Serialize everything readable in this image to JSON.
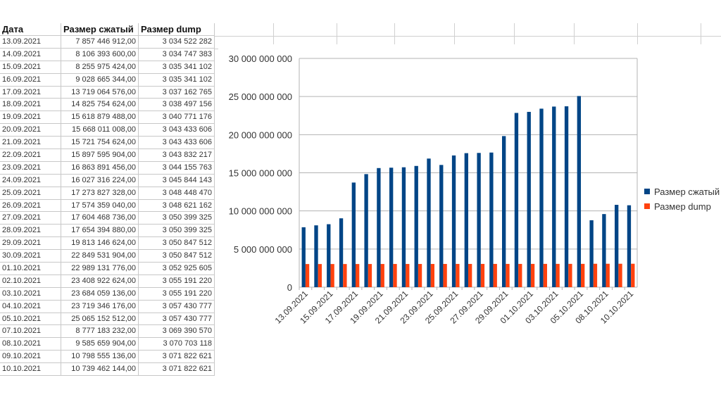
{
  "table": {
    "headers": [
      "Дата",
      "Размер сжатый",
      "Размер dump"
    ],
    "rows": [
      [
        "13.09.2021",
        "7 857 446 912,00",
        "3 034 522 282"
      ],
      [
        "14.09.2021",
        "8 106 393 600,00",
        "3 034 747 383"
      ],
      [
        "15.09.2021",
        "8 255 975 424,00",
        "3 035 341 102"
      ],
      [
        "16.09.2021",
        "9 028 665 344,00",
        "3 035 341 102"
      ],
      [
        "17.09.2021",
        "13 719 064 576,00",
        "3 037 162 765"
      ],
      [
        "18.09.2021",
        "14 825 754 624,00",
        "3 038 497 156"
      ],
      [
        "19.09.2021",
        "15 618 879 488,00",
        "3 040 771 176"
      ],
      [
        "20.09.2021",
        "15 668 011 008,00",
        "3 043 433 606"
      ],
      [
        "21.09.2021",
        "15 721 754 624,00",
        "3 043 433 606"
      ],
      [
        "22.09.2021",
        "15 897 595 904,00",
        "3 043 832 217"
      ],
      [
        "23.09.2021",
        "16 863 891 456,00",
        "3 044 155 763"
      ],
      [
        "24.09.2021",
        "16 027 316 224,00",
        "3 045 844 143"
      ],
      [
        "25.09.2021",
        "17 273 827 328,00",
        "3 048 448 470"
      ],
      [
        "26.09.2021",
        "17 574 359 040,00",
        "3 048 621 162"
      ],
      [
        "27.09.2021",
        "17 604 468 736,00",
        "3 050 399 325"
      ],
      [
        "28.09.2021",
        "17 654 394 880,00",
        "3 050 399 325"
      ],
      [
        "29.09.2021",
        "19 813 146 624,00",
        "3 050 847 512"
      ],
      [
        "30.09.2021",
        "22 849 531 904,00",
        "3 050 847 512"
      ],
      [
        "01.10.2021",
        "22 989 131 776,00",
        "3 052 925 605"
      ],
      [
        "02.10.2021",
        "23 408 922 624,00",
        "3 055 191 220"
      ],
      [
        "03.10.2021",
        "23 684 059 136,00",
        "3 055 191 220"
      ],
      [
        "04.10.2021",
        "23 719 346 176,00",
        "3 057 430 777"
      ],
      [
        "05.10.2021",
        "25 065 152 512,00",
        "3 057 430 777"
      ],
      [
        "07.10.2021",
        "8 777 183 232,00",
        "3 069 390 570"
      ],
      [
        "08.10.2021",
        "9 585 659 904,00",
        "3 070 703 118"
      ],
      [
        "09.10.2021",
        "10 798 555 136,00",
        "3 071 822 621"
      ],
      [
        "10.10.2021",
        "10 739 462 144,00",
        "3 071 822 621"
      ]
    ]
  },
  "chart_data": {
    "type": "bar",
    "categories": [
      "13.09.2021",
      "14.09.2021",
      "15.09.2021",
      "16.09.2021",
      "17.09.2021",
      "18.09.2021",
      "19.09.2021",
      "20.09.2021",
      "21.09.2021",
      "22.09.2021",
      "23.09.2021",
      "24.09.2021",
      "25.09.2021",
      "26.09.2021",
      "27.09.2021",
      "28.09.2021",
      "29.09.2021",
      "30.09.2021",
      "01.10.2021",
      "02.10.2021",
      "03.10.2021",
      "04.10.2021",
      "05.10.2021",
      "07.10.2021",
      "08.10.2021",
      "09.10.2021",
      "10.10.2021"
    ],
    "series": [
      {
        "name": "Размер сжатый",
        "color": "#004586",
        "values": [
          7857446912,
          8106393600,
          8255975424,
          9028665344,
          13719064576,
          14825754624,
          15618879488,
          15668011008,
          15721754624,
          15897595904,
          16863891456,
          16027316224,
          17273827328,
          17574359040,
          17604468736,
          17654394880,
          19813146624,
          22849531904,
          22989131776,
          23408922624,
          23684059136,
          23719346176,
          25065152512,
          8777183232,
          9585659904,
          10798555136,
          10739462144
        ]
      },
      {
        "name": "Размер dump",
        "color": "#ff420e",
        "values": [
          3034522282,
          3034747383,
          3035341102,
          3035341102,
          3037162765,
          3038497156,
          3040771176,
          3043433606,
          3043433606,
          3043832217,
          3044155763,
          3045844143,
          3048448470,
          3048621162,
          3050399325,
          3050399325,
          3050847512,
          3050847512,
          3052925605,
          3055191220,
          3055191220,
          3057430777,
          3057430777,
          3069390570,
          3070703118,
          3071822621,
          3071822621
        ]
      }
    ],
    "yticks": [
      "0",
      "5 000 000 000",
      "10 000 000 000",
      "15 000 000 000",
      "20 000 000 000",
      "25 000 000 000",
      "30 000 000 000"
    ],
    "ylim": [
      0,
      30000000000
    ],
    "xtick_every": 2,
    "legend": "right",
    "grid": true
  }
}
